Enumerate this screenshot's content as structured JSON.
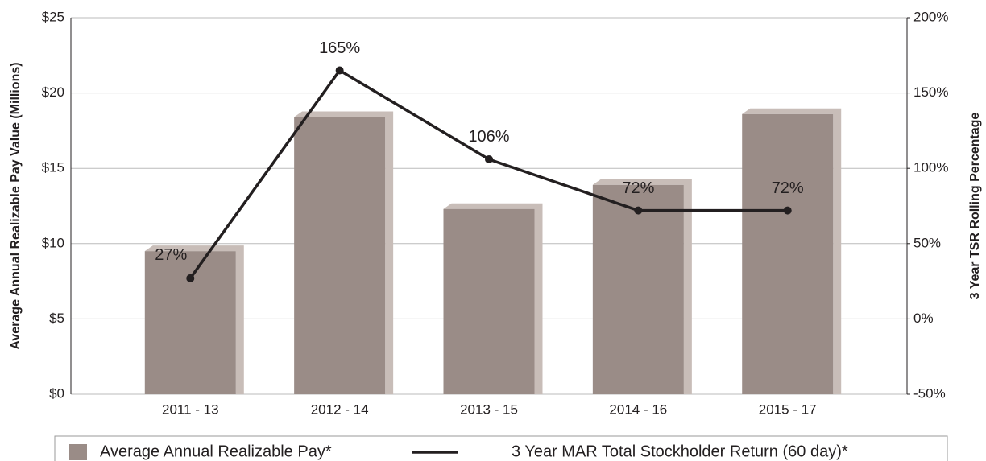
{
  "chart_data": {
    "type": "bar",
    "categories": [
      "2011 - 13",
      "2012 - 14",
      "2013 - 15",
      "2014 - 16",
      "2015 - 17"
    ],
    "series": [
      {
        "name": "Average Annual Realizable Pay*",
        "type": "bar",
        "color": "#9a8c87",
        "values": [
          9.5,
          18.4,
          12.3,
          13.9,
          18.6
        ]
      },
      {
        "name": "3 Year MAR Total Stockholder Return (60 day)*",
        "type": "line",
        "axis": "y2",
        "color": "#231f20",
        "values": [
          27,
          165,
          106,
          72,
          72
        ],
        "value_labels": [
          "27%",
          "165%",
          "106%",
          "72%",
          "72%"
        ]
      }
    ],
    "ylabel": "Average Annual Realizable Pay Value (Millions)",
    "y2label": "3 Year TSR Rolling Percentage",
    "ylim": [
      0,
      25
    ],
    "yticks": [
      {
        "value": 0,
        "label": "$0"
      },
      {
        "value": 5,
        "label": "$5"
      },
      {
        "value": 10,
        "label": "$10"
      },
      {
        "value": 15,
        "label": "$15"
      },
      {
        "value": 20,
        "label": "$20"
      },
      {
        "value": 25,
        "label": "$25"
      }
    ],
    "y2lim": [
      -50,
      200
    ],
    "y2ticks": [
      {
        "value": -50,
        "label": "-50%"
      },
      {
        "value": 0,
        "label": "0%"
      },
      {
        "value": 50,
        "label": "50%"
      },
      {
        "value": 100,
        "label": "100%"
      },
      {
        "value": 150,
        "label": "150%"
      },
      {
        "value": 200,
        "label": "200%"
      }
    ],
    "grid": true,
    "legend": "bottom"
  }
}
